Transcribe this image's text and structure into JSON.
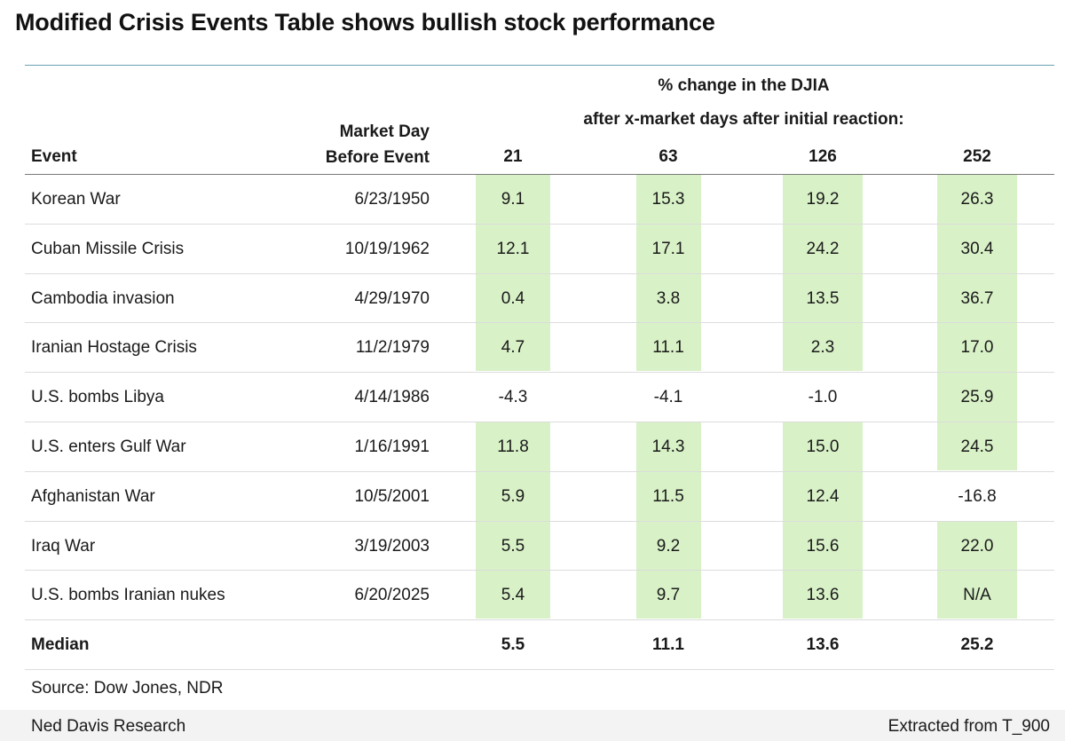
{
  "title": "Modified Crisis Events Table shows bullish stock performance",
  "header": {
    "line1": "% change in the DJIA",
    "line2": "after x-market days after initial reaction:",
    "event_label": "Event",
    "market_day_line1": "Market Day",
    "market_day_line2": "Before Event",
    "periods": [
      "21",
      "63",
      "126",
      "252"
    ]
  },
  "colors": {
    "highlight": "#d8f1c7",
    "rule": "#6aa3b5"
  },
  "rows": [
    {
      "event": "Korean War",
      "date": "6/23/1950",
      "values": [
        "9.1",
        "15.3",
        "19.2",
        "26.3"
      ],
      "highlight": [
        true,
        true,
        true,
        true
      ]
    },
    {
      "event": "Cuban Missile Crisis",
      "date": "10/19/1962",
      "values": [
        "12.1",
        "17.1",
        "24.2",
        "30.4"
      ],
      "highlight": [
        true,
        true,
        true,
        true
      ]
    },
    {
      "event": "Cambodia invasion",
      "date": "4/29/1970",
      "values": [
        "0.4",
        "3.8",
        "13.5",
        "36.7"
      ],
      "highlight": [
        true,
        true,
        true,
        true
      ]
    },
    {
      "event": "Iranian Hostage Crisis",
      "date": "11/2/1979",
      "values": [
        "4.7",
        "11.1",
        "2.3",
        "17.0"
      ],
      "highlight": [
        true,
        true,
        true,
        true
      ]
    },
    {
      "event": "U.S. bombs Libya",
      "date": "4/14/1986",
      "values": [
        "-4.3",
        "-4.1",
        "-1.0",
        "25.9"
      ],
      "highlight": [
        false,
        false,
        false,
        true
      ]
    },
    {
      "event": "U.S. enters Gulf War",
      "date": "1/16/1991",
      "values": [
        "11.8",
        "14.3",
        "15.0",
        "24.5"
      ],
      "highlight": [
        true,
        true,
        true,
        true
      ]
    },
    {
      "event": "Afghanistan War",
      "date": "10/5/2001",
      "values": [
        "5.9",
        "11.5",
        "12.4",
        "-16.8"
      ],
      "highlight": [
        true,
        true,
        true,
        false
      ]
    },
    {
      "event": "Iraq War",
      "date": "3/19/2003",
      "values": [
        "5.5",
        "9.2",
        "15.6",
        "22.0"
      ],
      "highlight": [
        true,
        true,
        true,
        true
      ]
    },
    {
      "event": "U.S. bombs Iranian nukes",
      "date": "6/20/2025",
      "values": [
        "5.4",
        "9.7",
        "13.6",
        "N/A"
      ],
      "highlight": [
        true,
        true,
        true,
        true
      ]
    }
  ],
  "median": {
    "label": "Median",
    "values": [
      "5.5",
      "11.1",
      "13.6",
      "25.2"
    ]
  },
  "source": "Source: Dow Jones, NDR",
  "footer": {
    "left": "Ned Davis Research",
    "right": "Extracted from T_900"
  }
}
